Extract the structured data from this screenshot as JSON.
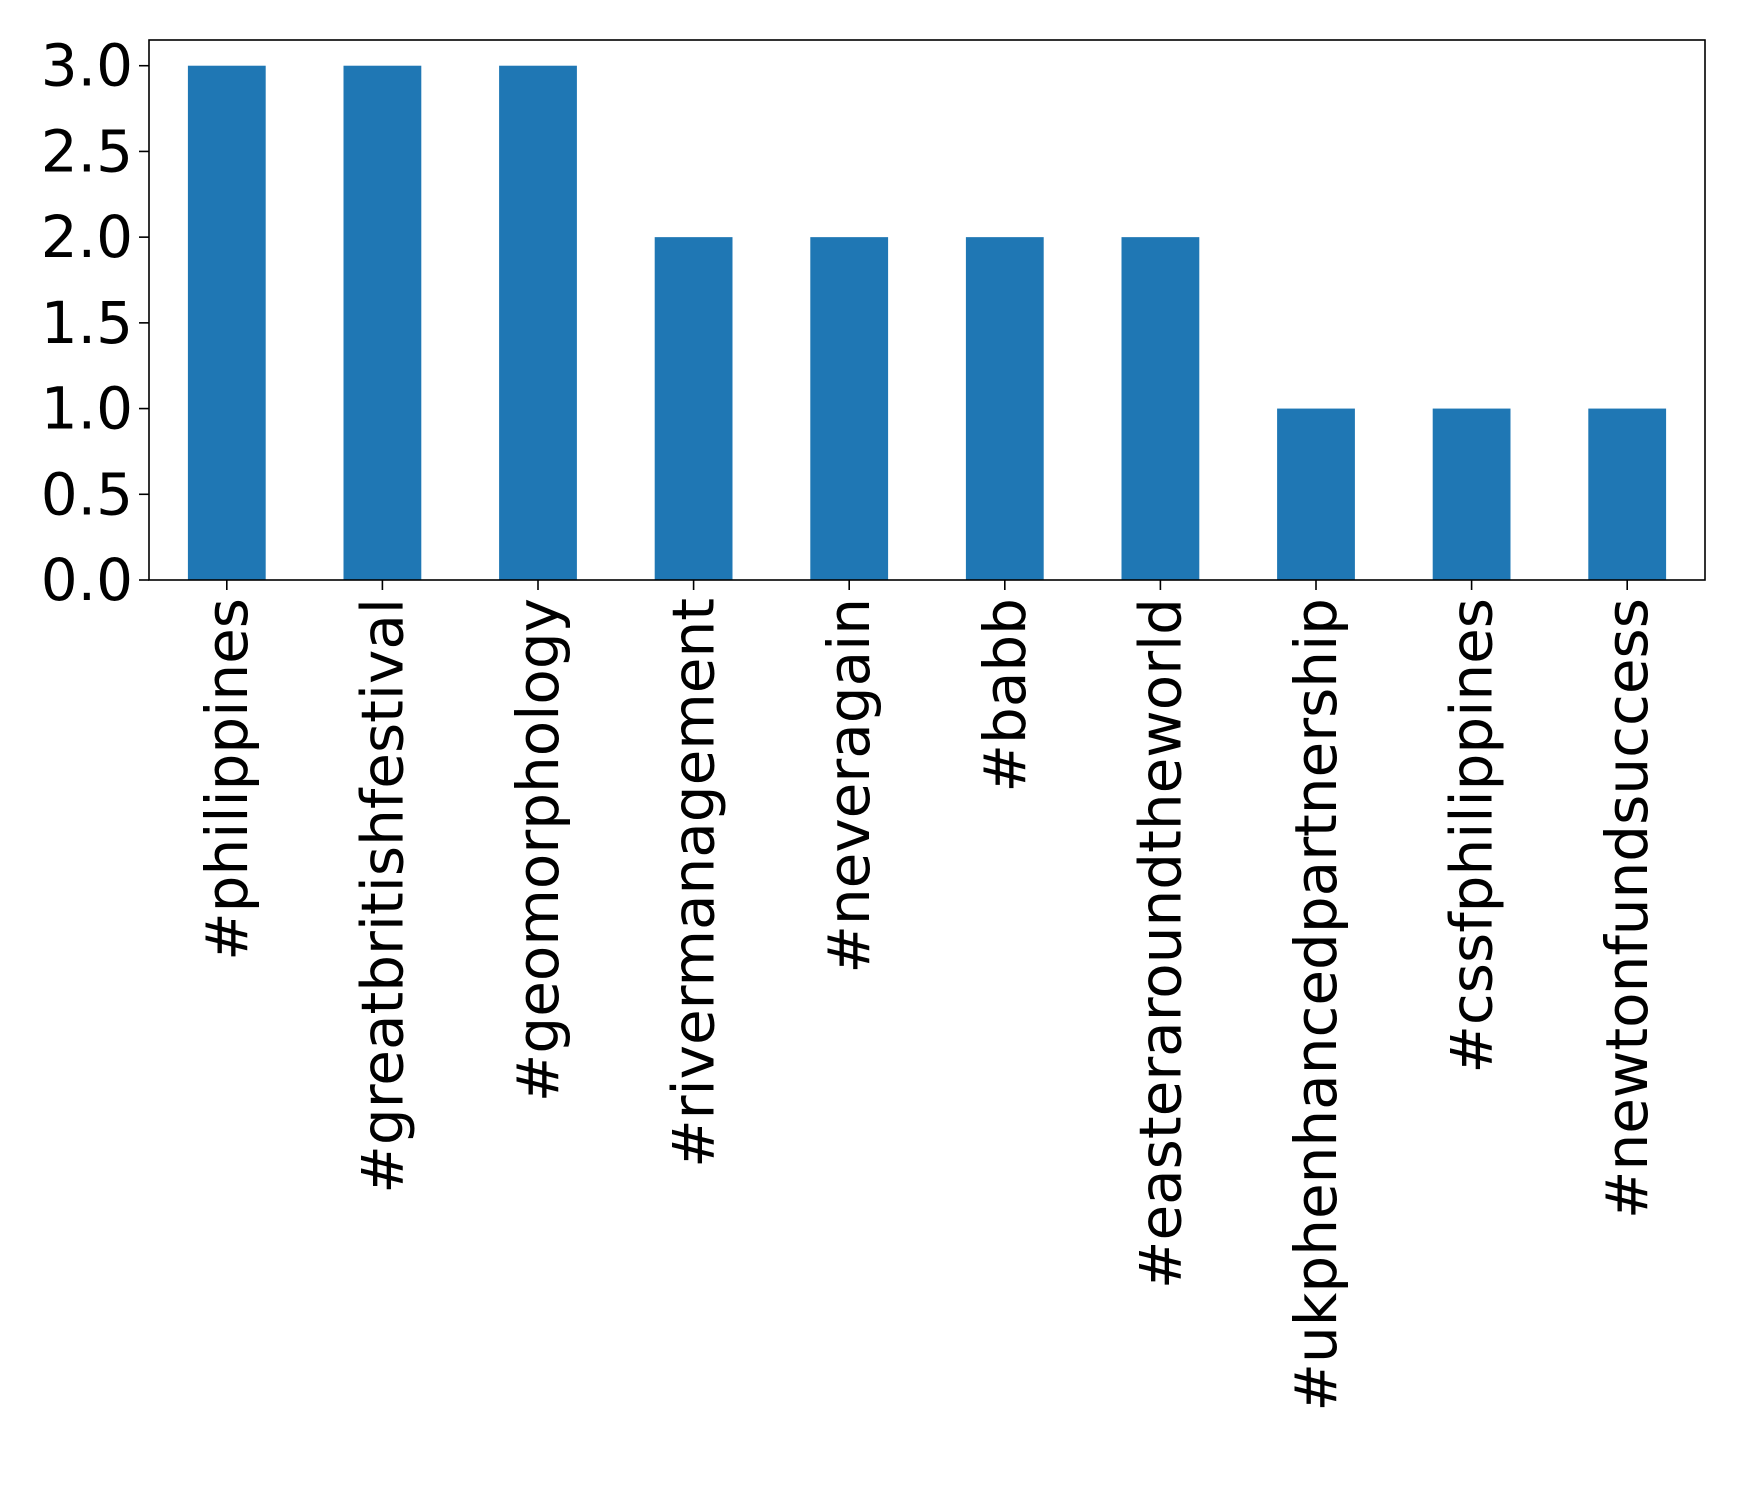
{
  "chart_data": {
    "type": "bar",
    "categories": [
      "#philippines",
      "#greatbritishfestival",
      "#geomorphology",
      "#rivermanagement",
      "#neveragain",
      "#babb",
      "#easteraroundtheworld",
      "#ukphenhancedpartnership",
      "#cssfphilippines",
      "#newtonfundsuccess"
    ],
    "values": [
      3,
      3,
      3,
      2,
      2,
      2,
      2,
      1,
      1,
      1
    ],
    "yticks": [
      "0.0",
      "0.5",
      "1.0",
      "1.5",
      "2.0",
      "2.5",
      "3.0"
    ],
    "ylim": [
      0,
      3.15
    ],
    "title": "",
    "xlabel": "",
    "ylabel": "",
    "grid": false,
    "legend": false,
    "bar_color": "#1f77b4"
  }
}
